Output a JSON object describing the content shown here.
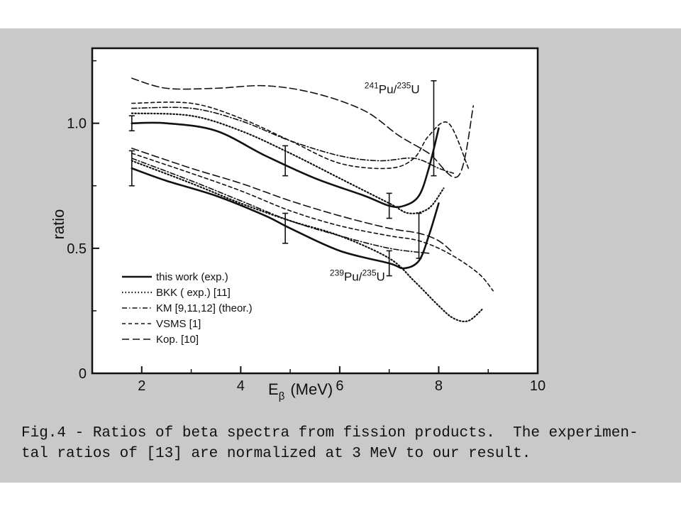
{
  "chart_data": {
    "type": "line",
    "xlabel": "E",
    "xlabel_sub": "β",
    "xlabel_unit": "(MeV)",
    "ylabel": "ratio",
    "xlim": [
      1,
      10
    ],
    "ylim": [
      0,
      1.3
    ],
    "x_ticks": [
      2,
      4,
      6,
      8,
      10
    ],
    "y_ticks": [
      {
        "value": 0,
        "label": "0"
      },
      {
        "value": 0.5,
        "label": "0.5"
      },
      {
        "value": 1.0,
        "label": "1.0"
      }
    ],
    "grid": false,
    "legend_position": "bottom-left",
    "annotations": [
      {
        "group": "Pu241",
        "top": "241",
        "main": "Pu/",
        "top2": "235",
        "main2": "U",
        "x": 6.5,
        "y": 1.12
      },
      {
        "group": "Pu239",
        "top": "239",
        "main": "Pu/",
        "top2": "235",
        "main2": "U",
        "x": 5.8,
        "y": 0.37
      }
    ],
    "series": [
      {
        "name": "this work (exp.)",
        "group": "Pu241",
        "style": "solid",
        "x": [
          1.8,
          2.5,
          3.5,
          4.5,
          5.5,
          6.5,
          7.0,
          7.3,
          7.6,
          7.8,
          8.0
        ],
        "y": [
          1.0,
          1.0,
          0.97,
          0.87,
          0.78,
          0.71,
          0.67,
          0.67,
          0.71,
          0.82,
          0.98
        ]
      },
      {
        "name": "BKK ( exp.) [11]",
        "group": "Pu241",
        "style": "dotted",
        "x": [
          1.8,
          3.0,
          4.0,
          5.0,
          6.0,
          7.0,
          7.4,
          7.8,
          8.1
        ],
        "y": [
          1.04,
          1.03,
          0.97,
          0.88,
          0.78,
          0.68,
          0.64,
          0.66,
          0.74
        ]
      },
      {
        "name": "KM [9,11,12] (theor.)",
        "group": "Pu241",
        "style": "dashdot",
        "x": [
          1.8,
          3.0,
          4.0,
          5.0,
          6.0,
          6.8,
          7.5,
          8.0,
          8.3
        ],
        "y": [
          1.06,
          1.06,
          1.01,
          0.93,
          0.87,
          0.85,
          0.86,
          0.82,
          0.8
        ]
      },
      {
        "name": "VSMS [1]",
        "group": "Pu241",
        "style": "dashed",
        "x": [
          1.8,
          3.0,
          4.0,
          5.0,
          6.0,
          7.0,
          7.5,
          7.8,
          8.2,
          8.6
        ],
        "y": [
          1.08,
          1.08,
          1.02,
          0.93,
          0.84,
          0.82,
          0.86,
          0.95,
          1.0,
          0.82
        ]
      },
      {
        "name": "Kop. [10]",
        "group": "Pu241",
        "style": "longdash",
        "x": [
          1.8,
          2.5,
          3.5,
          4.5,
          5.5,
          6.5,
          7.2,
          7.8,
          8.4,
          8.7
        ],
        "y": [
          1.18,
          1.14,
          1.14,
          1.15,
          1.12,
          1.05,
          0.95,
          0.88,
          0.79,
          1.07
        ]
      },
      {
        "name": "this work (exp.)",
        "group": "Pu239",
        "style": "solid",
        "x": [
          1.8,
          2.5,
          3.5,
          4.5,
          5.0,
          6.0,
          7.0,
          7.3,
          7.6,
          7.8,
          8.0
        ],
        "y": [
          0.82,
          0.77,
          0.71,
          0.63,
          0.58,
          0.49,
          0.44,
          0.42,
          0.45,
          0.55,
          0.68
        ]
      },
      {
        "name": "BKK ( exp.) [11]",
        "group": "Pu239",
        "style": "dotted",
        "x": [
          1.8,
          3.0,
          4.0,
          5.0,
          6.0,
          7.0,
          7.5,
          8.0,
          8.3,
          8.6,
          8.9
        ],
        "y": [
          0.85,
          0.76,
          0.68,
          0.61,
          0.55,
          0.46,
          0.37,
          0.27,
          0.22,
          0.21,
          0.26
        ]
      },
      {
        "name": "KM [9,11,12] (theor.)",
        "group": "Pu239",
        "style": "dashdot",
        "x": [
          1.8,
          3.0,
          4.0,
          5.0,
          6.0,
          7.0,
          7.8
        ],
        "y": [
          0.86,
          0.77,
          0.69,
          0.61,
          0.55,
          0.5,
          0.48
        ]
      },
      {
        "name": "VSMS [1]",
        "group": "Pu239",
        "style": "dashed",
        "x": [
          1.8,
          3.0,
          4.0,
          5.0,
          6.0,
          7.0,
          7.6,
          8.2,
          8.8,
          9.1
        ],
        "y": [
          0.88,
          0.8,
          0.73,
          0.65,
          0.59,
          0.55,
          0.53,
          0.48,
          0.4,
          0.33
        ]
      },
      {
        "name": "Kop. [10]",
        "group": "Pu239",
        "style": "longdash",
        "x": [
          1.8,
          3.0,
          4.0,
          5.0,
          6.0,
          7.0,
          7.6,
          8.0,
          8.3
        ],
        "y": [
          0.9,
          0.82,
          0.76,
          0.69,
          0.63,
          0.58,
          0.56,
          0.53,
          0.48
        ]
      }
    ],
    "error_bars": [
      {
        "group": "Pu241",
        "x": 1.8,
        "y": 1.0,
        "low": 0.97,
        "high": 1.03
      },
      {
        "group": "Pu241",
        "x": 4.9,
        "y": 0.85,
        "low": 0.79,
        "high": 0.91
      },
      {
        "group": "Pu241",
        "x": 7.0,
        "y": 0.67,
        "low": 0.62,
        "high": 0.72
      },
      {
        "group": "Pu241",
        "x": 7.9,
        "y": 0.98,
        "low": 0.79,
        "high": 1.17
      },
      {
        "group": "Pu239",
        "x": 1.8,
        "y": 0.82,
        "low": 0.75,
        "high": 0.89
      },
      {
        "group": "Pu239",
        "x": 4.9,
        "y": 0.58,
        "low": 0.52,
        "high": 0.64
      },
      {
        "group": "Pu239",
        "x": 7.0,
        "y": 0.44,
        "low": 0.39,
        "high": 0.49
      },
      {
        "group": "Pu239",
        "x": 7.6,
        "y": 0.55,
        "low": 0.46,
        "high": 0.64
      }
    ]
  },
  "colors": {
    "ink": "#111111",
    "scan_background": "#c9c9c9",
    "plot_background": "#ffffff"
  },
  "caption": "Fig.4 - Ratios of beta spectra from fission products.  The experimen-\ntal ratios of [13] are normalized at 3 MeV to our result."
}
